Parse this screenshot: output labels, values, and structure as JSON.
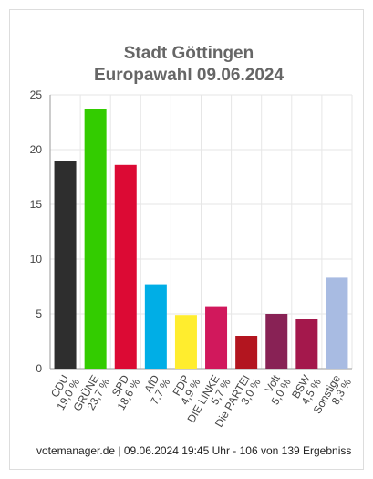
{
  "chart_data": {
    "type": "bar",
    "title": [
      "Stadt Göttingen",
      "Europawahl 09.06.2024"
    ],
    "categories": [
      "CDU",
      "GRÜNE",
      "SPD",
      "AfD",
      "FDP",
      "DIE LINKE",
      "Die PARTEI",
      "Volt",
      "BSW",
      "Sonstige"
    ],
    "values": [
      19.0,
      23.7,
      18.6,
      7.7,
      4.9,
      5.7,
      3.0,
      5.0,
      4.5,
      8.3
    ],
    "value_labels": [
      "19,0 %",
      "23,7 %",
      "18,6 %",
      "7,7 %",
      "4,9 %",
      "5,7 %",
      "3,0 %",
      "5,0 %",
      "4,5 %",
      "8,3 %"
    ],
    "colors": [
      "#2e2e2e",
      "#33cc00",
      "#dc0a34",
      "#00aee6",
      "#ffed2e",
      "#d1185c",
      "#b3151f",
      "#882255",
      "#a4184c",
      "#a8bbe2"
    ],
    "ylim": [
      0,
      25
    ],
    "yticks": [
      0,
      5,
      10,
      15,
      20,
      25
    ],
    "grid": true,
    "source": "votemanager.de | 09.06.2024 19:45 Uhr - 106 von 139 Ergebniss"
  }
}
